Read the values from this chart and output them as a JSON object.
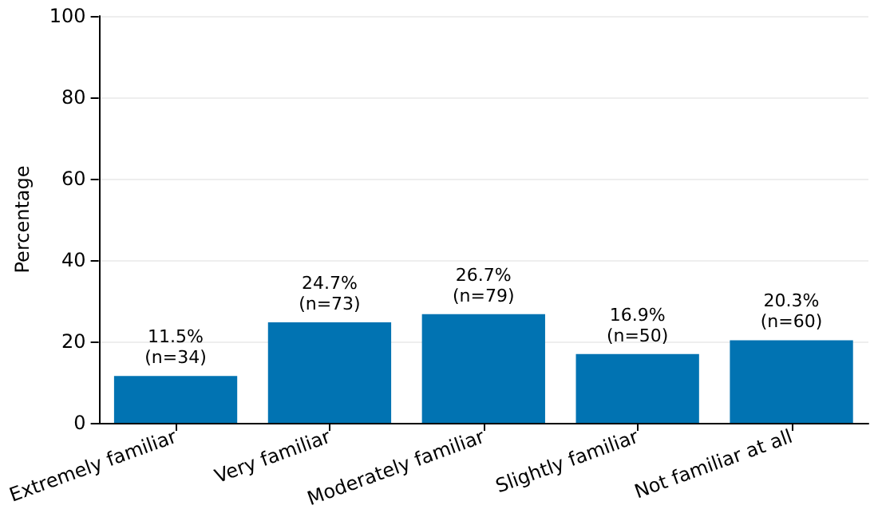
{
  "chart_data": {
    "type": "bar",
    "ylabel": "Percentage",
    "categories": [
      "Extremely familiar",
      "Very familiar",
      "Moderately familiar",
      "Slightly familiar",
      "Not familiar at all"
    ],
    "values": [
      11.5,
      24.7,
      26.7,
      16.9,
      20.3
    ],
    "value_labels": [
      "11.5%\n(n=34)",
      "24.7%\n(n=73)",
      "26.7%\n(n=79)",
      "16.9%\n(n=50)",
      "20.3%\n(n=60)"
    ],
    "color": "#0173b2",
    "ylim": [
      0,
      100
    ],
    "yticks": [
      0,
      20,
      40,
      60,
      80,
      100
    ],
    "grid": "y"
  }
}
